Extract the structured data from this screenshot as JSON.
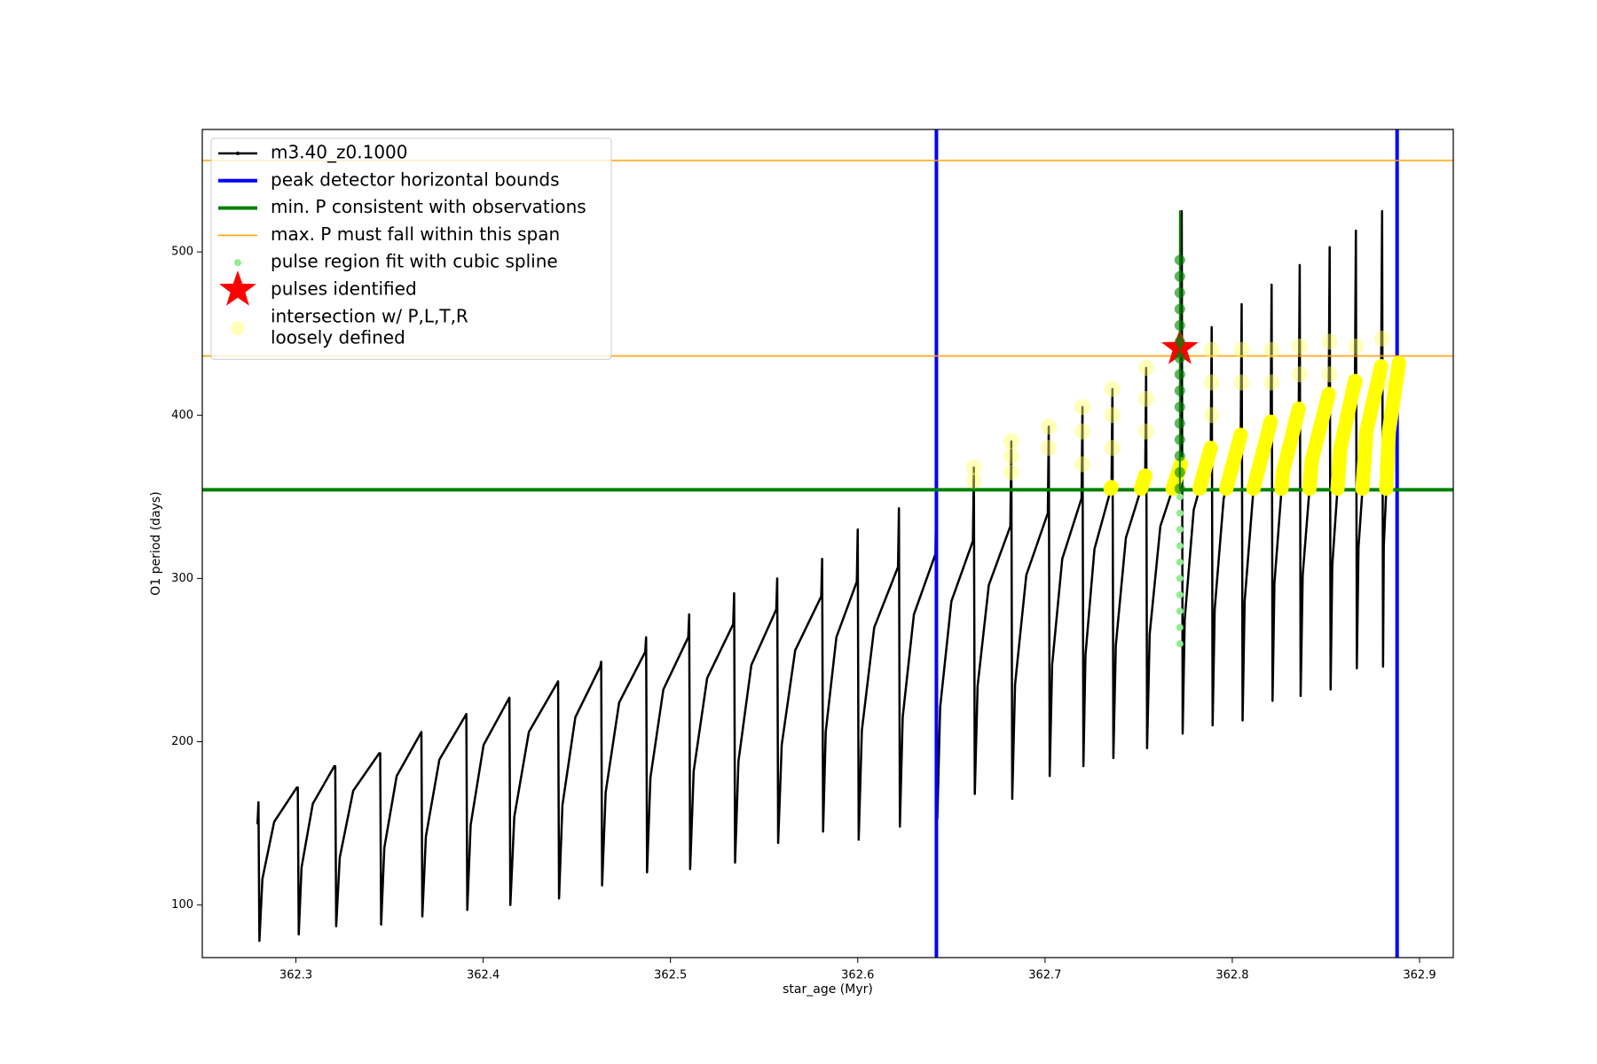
{
  "chart_data": {
    "type": "line",
    "xlabel": "star_age (Myr)",
    "ylabel": "O1 period (days)",
    "xlim": [
      362.25,
      362.918
    ],
    "ylim": [
      67.8,
      575
    ],
    "xticks": [
      362.3,
      362.4,
      362.5,
      362.6,
      362.7,
      362.8,
      362.9
    ],
    "yticks": [
      100,
      200,
      300,
      400,
      500
    ],
    "legend": "upper left",
    "series": [
      {
        "name": "m3.40_z0.1000",
        "kind": "line",
        "color": "#000000",
        "linewidth": 2.5,
        "x": [
          362.2795,
          362.28,
          362.2805,
          362.2821,
          362.2884,
          362.3005,
          362.301,
          362.3015,
          362.303,
          362.309,
          362.3205,
          362.321,
          362.3215,
          362.3234,
          362.3306,
          362.3445,
          362.345,
          362.3455,
          362.3472,
          362.3538,
          362.3665,
          362.367,
          362.3675,
          362.3694,
          362.3766,
          362.3905,
          362.391,
          362.3915,
          362.3933,
          362.4002,
          362.4135,
          362.414,
          362.4145,
          362.4166,
          362.4244,
          362.4395,
          362.44,
          362.4405,
          362.4423,
          362.4492,
          362.4625,
          362.463,
          362.4635,
          362.4654,
          362.4726,
          362.4865,
          362.487,
          362.4875,
          362.4893,
          362.4962,
          362.5095,
          362.51,
          362.5105,
          362.5124,
          362.5196,
          362.5335,
          362.534,
          362.5345,
          362.5363,
          362.5432,
          362.5565,
          362.557,
          362.5575,
          362.5594,
          362.5666,
          362.5805,
          362.581,
          362.5815,
          362.5829,
          362.5886,
          362.5995,
          362.6,
          362.6005,
          362.6022,
          362.6088,
          362.6215,
          362.622,
          362.6225,
          362.624,
          362.63,
          362.6415,
          362.642,
          362.6425,
          362.644,
          362.65,
          362.6615,
          362.662,
          362.6625,
          362.664,
          362.67,
          362.6815,
          362.682,
          362.6825,
          362.684,
          362.69,
          362.7015,
          362.702,
          362.7025,
          362.7038,
          362.7092,
          362.7195,
          362.72,
          362.7205,
          362.7216,
          362.7264,
          362.7355,
          362.736,
          362.7365,
          362.7378,
          362.7432,
          362.7535,
          362.754,
          362.7545,
          362.7559,
          362.7616,
          362.7725,
          362.773,
          362.7735,
          362.7746,
          362.7794,
          362.7885,
          362.789,
          362.7895,
          362.7906,
          362.7954,
          362.8045,
          362.805,
          362.8055,
          362.8066,
          362.8114,
          362.8205,
          362.821,
          362.8215,
          362.8225,
          362.827,
          362.8355,
          362.836,
          362.8365,
          362.8376,
          362.8424,
          362.8515,
          362.852,
          362.8525,
          362.8534,
          362.8576,
          362.8655,
          362.866,
          362.8665,
          362.8674,
          362.8716,
          362.8795,
          362.88,
          362.8805,
          362.8809,
          362.8836,
          362.889
        ],
        "values": [
          150,
          163,
          78,
          116,
          151,
          172,
          172,
          82,
          123,
          162,
          185,
          185,
          87,
          129,
          170,
          193,
          193,
          88,
          135,
          179,
          205,
          206,
          93,
          142,
          189,
          216,
          217,
          97,
          149,
          198,
          226,
          227,
          100,
          154,
          206,
          236,
          237,
          104,
          161,
          215,
          246,
          249,
          112,
          169,
          224,
          255,
          264,
          120,
          178,
          232,
          264,
          278,
          122,
          182,
          239,
          272,
          291,
          126,
          188,
          247,
          281,
          300,
          138,
          198,
          256,
          289,
          312,
          145,
          206,
          264,
          298,
          330,
          140,
          207,
          270,
          307,
          343,
          148,
          215,
          278,
          315,
          355,
          153,
          221,
          286,
          323,
          368,
          168,
          234,
          296,
          332,
          384,
          165,
          235,
          302,
          340,
          393,
          179,
          247,
          312,
          349,
          405,
          185,
          253,
          318,
          356,
          416,
          190,
          259,
          325,
          363,
          429,
          196,
          266,
          332,
          370,
          525,
          205,
          275,
          342,
          380,
          454,
          210,
          281,
          349,
          388,
          468,
          213,
          286,
          356,
          396,
          480,
          225,
          297,
          365,
          404,
          492,
          228,
          302,
          372,
          413,
          503,
          232,
          308,
          379,
          421,
          513,
          245,
          319,
          390,
          430,
          525,
          246,
          320,
          390,
          432
        ]
      },
      {
        "name": "peak detector horizontal bounds",
        "kind": "vline",
        "color": "#0000ff",
        "linewidth": 4,
        "x": [
          362.642,
          362.888
        ]
      },
      {
        "name": "min. P consistent with observations",
        "kind": "hline",
        "color": "#008000",
        "linewidth": 4,
        "values": [
          354.3
        ]
      },
      {
        "name": "max. P must fall within this span",
        "kind": "hline",
        "color": "#ffa500",
        "linewidth": 1.6,
        "values": [
          436.3,
          556
        ]
      },
      {
        "name": "pulse region fit with cubic spline",
        "kind": "scatter",
        "color": "#90ee90",
        "markersize": 4,
        "x": [
          362.772,
          362.772,
          362.772,
          362.772,
          362.772,
          362.772,
          362.772,
          362.772,
          362.772,
          362.772
        ],
        "values": [
          260,
          270,
          280,
          290,
          300,
          310,
          320,
          330,
          340,
          350
        ]
      },
      {
        "name": "pulses identified",
        "kind": "star",
        "color": "#ff0000",
        "markersize": 22,
        "x": [
          362.772
        ],
        "values": [
          441
        ]
      },
      {
        "name": [
          "intersection w/ P,L,T,R",
          "loosely defined"
        ],
        "kind": "scatter",
        "color": "#ffff66",
        "opacity": 0.45,
        "markersize": 9,
        "x": [
          362.662,
          362.662,
          362.682,
          362.682,
          362.682,
          362.702,
          362.702,
          362.72,
          362.72,
          362.72,
          362.736,
          362.736,
          362.736,
          362.754,
          362.754,
          362.754,
          362.789,
          362.789,
          362.789,
          362.805,
          362.805,
          362.821,
          362.821,
          362.836,
          362.836,
          362.852,
          362.852,
          362.866,
          362.866,
          362.88,
          362.88
        ],
        "values": [
          368,
          360,
          384,
          375,
          365,
          393,
          380,
          405,
          390,
          370,
          416,
          400,
          380,
          429,
          410,
          390,
          440,
          420,
          400,
          440,
          420,
          440,
          420,
          442,
          425,
          445,
          425,
          442,
          420,
          447,
          420
        ]
      },
      {
        "kind": "line",
        "color": "#ffff00",
        "linewidth": 16,
        "x": [
          362.735,
          362.7355,
          null,
          362.7513,
          362.7535,
          null,
          362.7681,
          362.7725,
          null,
          362.7825,
          362.7885,
          null,
          362.7968,
          362.8045,
          null,
          362.8113,
          362.8205,
          null,
          362.8263,
          362.827,
          362.8355,
          null,
          362.8412,
          362.8424,
          362.8515,
          null,
          362.8562,
          362.8576,
          362.8655,
          null,
          362.8695,
          362.8716,
          362.8795,
          null,
          362.8822,
          362.8836,
          362.889
        ],
        "values": [
          355,
          356,
          null,
          355,
          363,
          null,
          355,
          370,
          null,
          355,
          380,
          null,
          355,
          388,
          null,
          355,
          396,
          null,
          355,
          365,
          404,
          null,
          355,
          372,
          413,
          null,
          355,
          379,
          421,
          null,
          355,
          390,
          430,
          null,
          355,
          390,
          432
        ]
      },
      {
        "kind": "line",
        "color": "#008000",
        "linewidth": 2,
        "x": [
          362.772,
          362.772
        ],
        "values": [
          355,
          525
        ]
      },
      {
        "kind": "scatter",
        "color": "#008000",
        "opacity": 0.6,
        "markersize": 6,
        "x": [
          362.772,
          362.772,
          362.772,
          362.772,
          362.772,
          362.772,
          362.772,
          362.772,
          362.772,
          362.772,
          362.772,
          362.772,
          362.772,
          362.772,
          362.772
        ],
        "values": [
          355,
          365,
          375,
          385,
          395,
          405,
          415,
          425,
          435,
          445,
          455,
          465,
          475,
          485,
          495
        ]
      }
    ]
  }
}
